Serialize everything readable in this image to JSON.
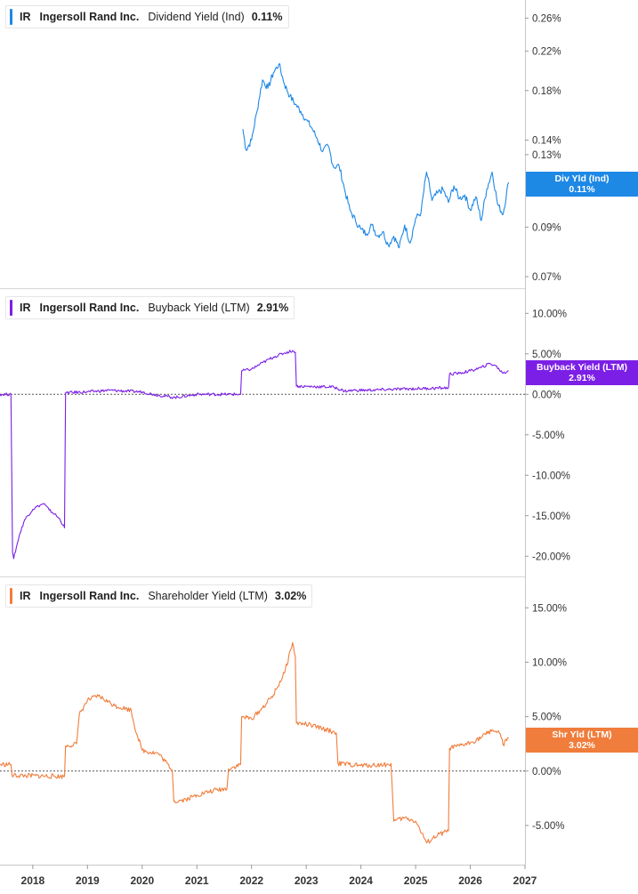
{
  "chart_data": [
    {
      "type": "line",
      "legend": {
        "ticker": "IR",
        "company": "Ingersoll Rand Inc.",
        "metric": "Dividend Yield (Ind)",
        "value": "0.11%"
      },
      "tag": {
        "label": "Div Yld (Ind)",
        "value": "0.11%"
      },
      "color": "#1e88e5",
      "yscale": "log",
      "ylim": [
        0.066,
        0.285
      ],
      "yticks": [
        0.07,
        0.09,
        0.13,
        0.14,
        0.18,
        0.22,
        0.26
      ],
      "ytick_labels": [
        "0.07%",
        "0.09%",
        "0.13%",
        "0.14%",
        "0.18%",
        "0.22%",
        "0.26%"
      ],
      "series": [
        {
          "x": [
            2021.84,
            2021.9,
            2022.0,
            2022.1,
            2022.2,
            2022.3,
            2022.4,
            2022.5,
            2022.6,
            2022.7,
            2022.8,
            2022.9,
            2023.0,
            2023.1,
            2023.2,
            2023.3,
            2023.4,
            2023.5,
            2023.6,
            2023.7,
            2023.8,
            2023.9,
            2024.0,
            2024.1,
            2024.2,
            2024.3,
            2024.4,
            2024.5,
            2024.6,
            2024.7,
            2024.8,
            2024.9,
            2025.0,
            2025.1,
            2025.2,
            2025.3,
            2025.4,
            2025.5,
            2025.6,
            2025.7,
            2025.8,
            2025.9,
            2026.0,
            2026.1,
            2026.2,
            2026.3,
            2026.4,
            2026.5,
            2026.6,
            2026.7
          ],
          "y": [
            0.148,
            0.133,
            0.14,
            0.162,
            0.19,
            0.182,
            0.197,
            0.206,
            0.186,
            0.175,
            0.168,
            0.162,
            0.155,
            0.149,
            0.141,
            0.132,
            0.136,
            0.122,
            0.123,
            0.109,
            0.098,
            0.093,
            0.089,
            0.087,
            0.091,
            0.086,
            0.088,
            0.082,
            0.086,
            0.081,
            0.091,
            0.083,
            0.094,
            0.097,
            0.119,
            0.103,
            0.107,
            0.109,
            0.102,
            0.111,
            0.104,
            0.106,
            0.098,
            0.105,
            0.093,
            0.109,
            0.119,
            0.101,
            0.096,
            0.113
          ]
        }
      ]
    },
    {
      "type": "line",
      "legend": {
        "ticker": "IR",
        "company": "Ingersoll Rand Inc.",
        "metric": "Buyback Yield (LTM)",
        "value": "2.91%"
      },
      "tag": {
        "label": "Buyback Yield (LTM)",
        "value": "2.91%"
      },
      "color": "#7c1fe6",
      "yscale": "linear",
      "ylim": [
        -22.5,
        13
      ],
      "yticks": [
        10,
        5,
        0,
        -5,
        -10,
        -15,
        -20
      ],
      "ytick_labels": [
        "10.00%",
        "5.00%",
        "0.00%",
        "-5.00%",
        "-10.00%",
        "-15.00%",
        "-20.00%"
      ],
      "zero_line": true,
      "series": [
        {
          "x": [
            2017.4,
            2017.6,
            2017.63,
            2017.65,
            2017.75,
            2017.85,
            2018.0,
            2018.1,
            2018.2,
            2018.3,
            2018.4,
            2018.5,
            2018.58,
            2018.6,
            2019.0,
            2019.4,
            2020.0,
            2020.2,
            2020.6,
            2021.0,
            2021.5,
            2021.8,
            2021.82,
            2022.0,
            2022.2,
            2022.4,
            2022.6,
            2022.75,
            2022.8,
            2022.82,
            2023.5,
            2023.7,
            2023.9,
            2024.1,
            2024.5,
            2025.0,
            2025.6,
            2025.62,
            2025.8,
            2026.0,
            2026.2,
            2026.35,
            2026.45,
            2026.6,
            2026.7
          ],
          "y": [
            0,
            0,
            -19.5,
            -20.3,
            -17.5,
            -15.5,
            -14.2,
            -13.8,
            -13.5,
            -14.3,
            -14.8,
            -15.5,
            -16.5,
            0.2,
            0.3,
            0.5,
            0.3,
            0,
            -0.4,
            0,
            0,
            0,
            2.9,
            3.1,
            3.9,
            4.6,
            5.1,
            5.4,
            5.2,
            1.0,
            0.9,
            0.4,
            0.5,
            0.5,
            0.6,
            0.7,
            0.8,
            2.5,
            2.6,
            2.9,
            3.3,
            3.8,
            3.6,
            2.6,
            2.91
          ]
        }
      ]
    },
    {
      "type": "line",
      "legend": {
        "ticker": "IR",
        "company": "Ingersoll Rand Inc.",
        "metric": "Shareholder Yield (LTM)",
        "value": "3.02%"
      },
      "tag": {
        "label": "Shr Yld (LTM)",
        "value": "3.02%"
      },
      "color": "#f07d3c",
      "yscale": "linear",
      "ylim": [
        -8.6,
        17.8
      ],
      "yticks": [
        15,
        10,
        5,
        0,
        -5
      ],
      "ytick_labels": [
        "15.00%",
        "10.00%",
        "5.00%",
        "0.00%",
        "-5.00%"
      ],
      "zero_line": true,
      "series": [
        {
          "x": [
            2017.4,
            2017.6,
            2017.62,
            2018.58,
            2018.6,
            2018.8,
            2018.85,
            2019.0,
            2019.2,
            2019.5,
            2019.8,
            2019.85,
            2020.0,
            2020.3,
            2020.55,
            2020.58,
            2020.8,
            2021.0,
            2021.3,
            2021.55,
            2021.58,
            2021.8,
            2021.82,
            2022.0,
            2022.2,
            2022.4,
            2022.6,
            2022.75,
            2022.8,
            2022.82,
            2023.0,
            2023.3,
            2023.55,
            2023.58,
            2024.0,
            2024.5,
            2024.55,
            2024.6,
            2024.8,
            2025.0,
            2025.2,
            2025.4,
            2025.6,
            2025.62,
            2025.8,
            2026.0,
            2026.2,
            2026.4,
            2026.55,
            2026.6,
            2026.7
          ],
          "y": [
            0.6,
            0.6,
            -0.4,
            -0.5,
            2.3,
            2.5,
            5.2,
            6.5,
            6.9,
            6.0,
            5.6,
            4.3,
            1.9,
            1.6,
            0.1,
            -2.8,
            -2.6,
            -2.2,
            -1.8,
            -1.6,
            0.2,
            0.6,
            5.0,
            4.8,
            5.8,
            7.0,
            9.0,
            11.8,
            10.5,
            4.4,
            4.3,
            3.9,
            3.5,
            0.7,
            0.5,
            0.6,
            0.7,
            -4.6,
            -4.3,
            -4.6,
            -6.6,
            -5.9,
            -5.5,
            2.1,
            2.3,
            2.6,
            3.1,
            3.8,
            3.4,
            2.4,
            3.02
          ]
        }
      ]
    }
  ],
  "x_axis": {
    "xlim": [
      2017.4,
      2027.0
    ],
    "ticks": [
      2018,
      2019,
      2020,
      2021,
      2022,
      2023,
      2024,
      2025,
      2026,
      2027
    ],
    "tick_labels": [
      "2018",
      "2019",
      "2020",
      "2021",
      "2022",
      "2023",
      "2024",
      "2025",
      "2026",
      "2027"
    ]
  }
}
